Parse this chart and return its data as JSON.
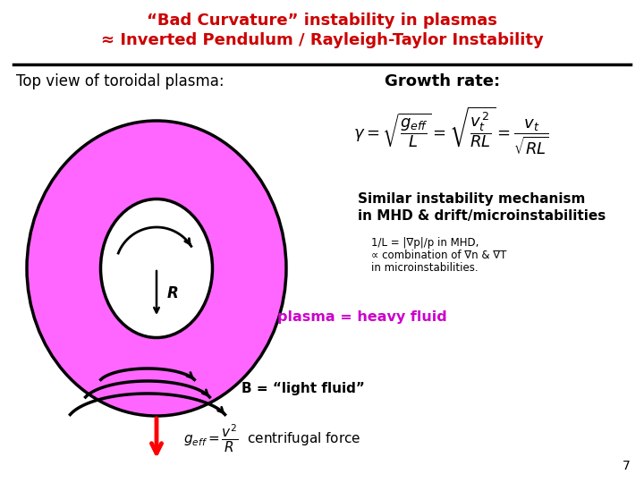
{
  "title_line1": "“Bad Curvature” instability in plasmas",
  "title_line2": "≈ Inverted Pendulum / Rayleigh-Taylor Instability",
  "title_color": "#cc0000",
  "subtitle_left": "Top view of toroidal plasma:",
  "subtitle_right": "Growth rate:",
  "plasma_color": "#ff66ff",
  "similar_text1": "Similar instability mechanism",
  "similar_text2": "in MHD & drift/microinstabilities",
  "note_text1": "1/L = |∇p|/p in MHD,",
  "note_text2": "∝ combination of ∇n & ∇T",
  "note_text3": "in microinstabilities.",
  "plasma_label": "plasma = heavy fluid",
  "b_label": "B = “light fluid”",
  "geff_label": "centrifugal force",
  "page_num": "7",
  "bg_color": "#ffffff"
}
